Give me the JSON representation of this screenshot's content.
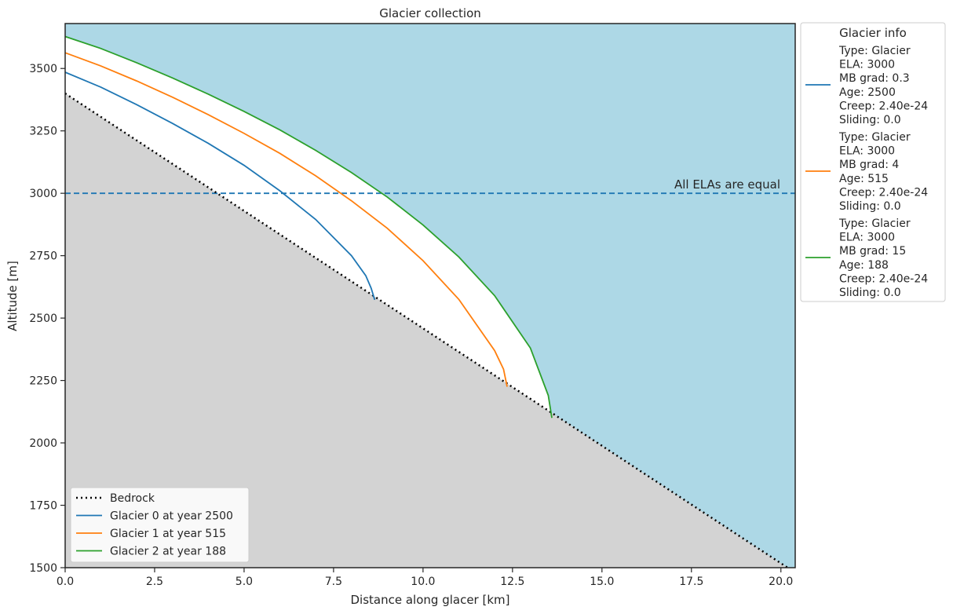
{
  "chart_data": {
    "type": "line",
    "title": "Glacier collection",
    "xlabel": "Distance along glacer [km]",
    "ylabel": "Altitude [m]",
    "xlim": [
      0,
      20.4
    ],
    "ylim": [
      1500,
      3680
    ],
    "xticks": [
      0.0,
      2.5,
      5.0,
      7.5,
      10.0,
      12.5,
      15.0,
      17.5,
      20.0
    ],
    "xtick_labels": [
      "0.0",
      "2.5",
      "5.0",
      "7.5",
      "10.0",
      "12.5",
      "15.0",
      "17.5",
      "20.0"
    ],
    "yticks": [
      1500,
      1750,
      2000,
      2250,
      2500,
      2750,
      3000,
      3250,
      3500
    ],
    "ytick_labels": [
      "1500",
      "1750",
      "2000",
      "2250",
      "2500",
      "2750",
      "3000",
      "3250",
      "3500"
    ],
    "grid": false,
    "background_color": "#add8e6",
    "bedrock_fill_color": "#d3d3d3",
    "ela_line": {
      "y": 3000,
      "label": "All ELAs are equal",
      "color": "#1f77b4",
      "style": "dashed"
    },
    "series": [
      {
        "name": "Bedrock",
        "color": "#000000",
        "style": "dotted",
        "x": [
          0,
          20.4
        ],
        "y": [
          3400,
          1480
        ]
      },
      {
        "name": "Glacier 0 at year 2500",
        "color": "#1f77b4",
        "style": "solid",
        "x": [
          0,
          1,
          2,
          3,
          4,
          5,
          6,
          7,
          8,
          8.4,
          8.55,
          8.65
        ],
        "y": [
          3485,
          3425,
          3355,
          3280,
          3200,
          3112,
          3010,
          2895,
          2750,
          2670,
          2620,
          2573
        ]
      },
      {
        "name": "Glacier 1 at year 515",
        "color": "#ff7f0e",
        "style": "solid",
        "x": [
          0,
          1,
          2,
          3,
          4,
          5,
          6,
          7,
          8,
          9,
          10,
          11,
          12,
          12.25,
          12.35
        ],
        "y": [
          3563,
          3510,
          3450,
          3385,
          3315,
          3240,
          3160,
          3070,
          2970,
          2860,
          2730,
          2575,
          2370,
          2295,
          2225
        ]
      },
      {
        "name": "Glacier 2 at year 188",
        "color": "#2ca02c",
        "style": "solid",
        "x": [
          0,
          1,
          2,
          3,
          4,
          5,
          6,
          7,
          8,
          9,
          10,
          11,
          12,
          13,
          13.5,
          13.6
        ],
        "y": [
          3628,
          3580,
          3523,
          3462,
          3397,
          3328,
          3254,
          3172,
          3083,
          2985,
          2873,
          2745,
          2590,
          2380,
          2190,
          2100
        ]
      }
    ],
    "legend": {
      "placement": "lower-left",
      "entries": [
        "Bedrock",
        "Glacier 0 at year 2500",
        "Glacier 1 at year 515",
        "Glacier 2 at year 188"
      ]
    },
    "info_legend": {
      "title": "Glacier info",
      "placement": "outside-right",
      "entries": [
        {
          "color": "#1f77b4",
          "lines": [
            "Type: Glacier",
            "ELA: 3000",
            "MB grad: 0.3",
            "Age: 2500",
            "Creep: 2.40e-24",
            "Sliding: 0.0"
          ]
        },
        {
          "color": "#ff7f0e",
          "lines": [
            "Type: Glacier",
            "ELA: 3000",
            "MB grad: 4",
            "Age: 515",
            "Creep: 2.40e-24",
            "Sliding: 0.0"
          ]
        },
        {
          "color": "#2ca02c",
          "lines": [
            "Type: Glacier",
            "ELA: 3000",
            "MB grad: 15",
            "Age: 188",
            "Creep: 2.40e-24",
            "Sliding: 0.0"
          ]
        }
      ]
    }
  }
}
